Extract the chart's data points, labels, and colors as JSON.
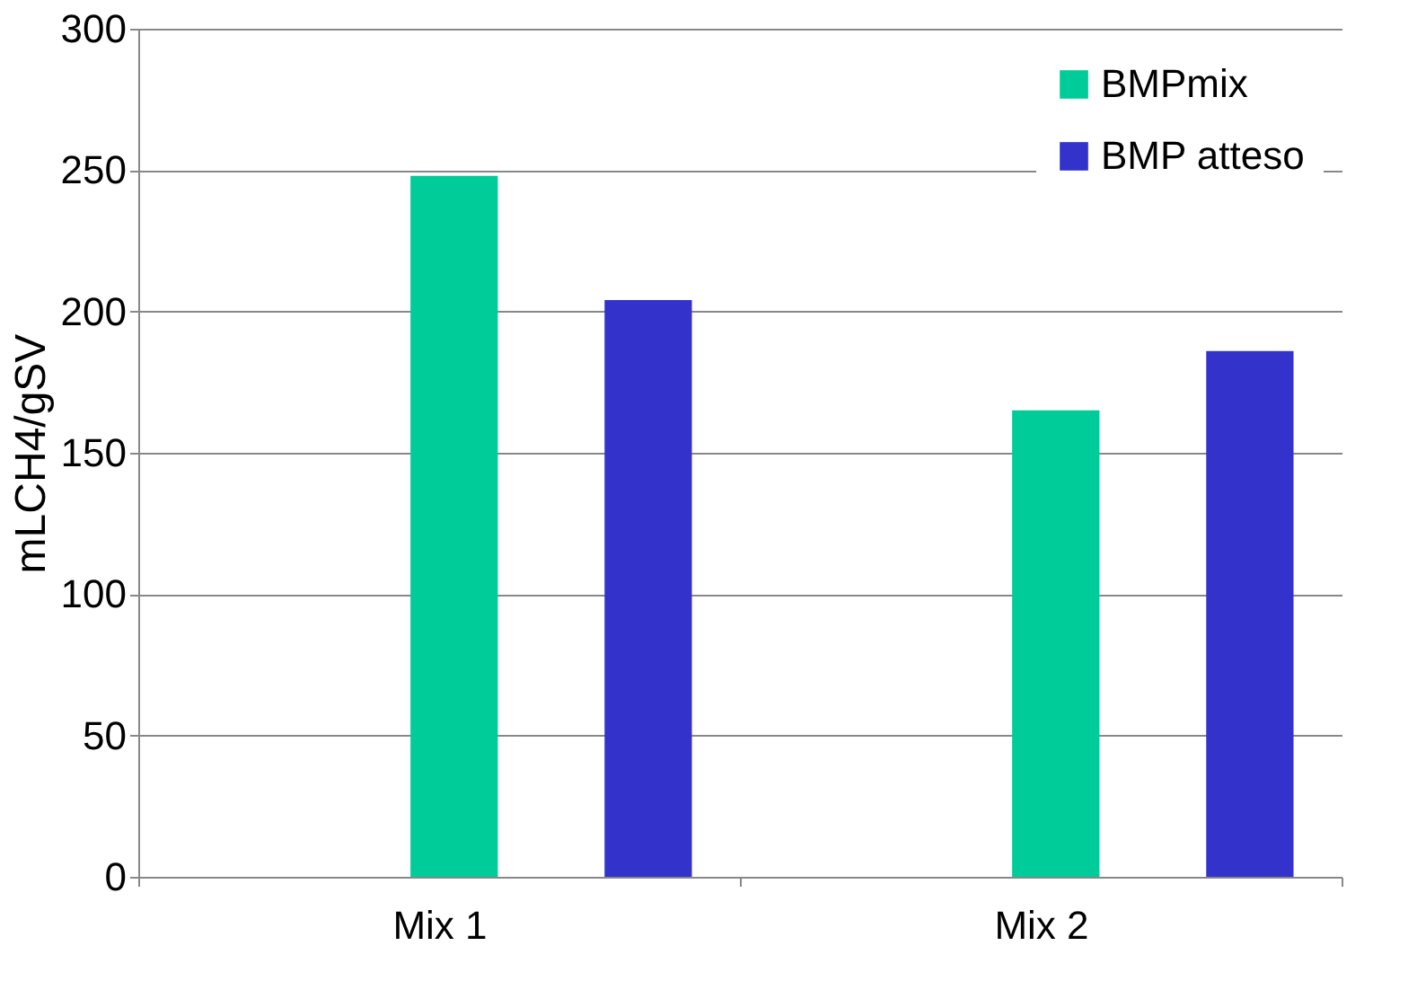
{
  "chart_data": {
    "type": "bar",
    "ylabel": "mLCH4/gSV",
    "categories": [
      "Mix 1",
      "Mix 2"
    ],
    "series": [
      {
        "name": "BMPmix",
        "color": "#00cc99",
        "values": [
          248,
          165
        ]
      },
      {
        "name": "BMP atteso",
        "color": "#3333cc",
        "values": [
          204,
          186
        ]
      }
    ],
    "ylim": [
      0,
      300
    ],
    "yticks": [
      0,
      50,
      100,
      150,
      200,
      250,
      300
    ],
    "grid": "y",
    "legend": "top right"
  }
}
